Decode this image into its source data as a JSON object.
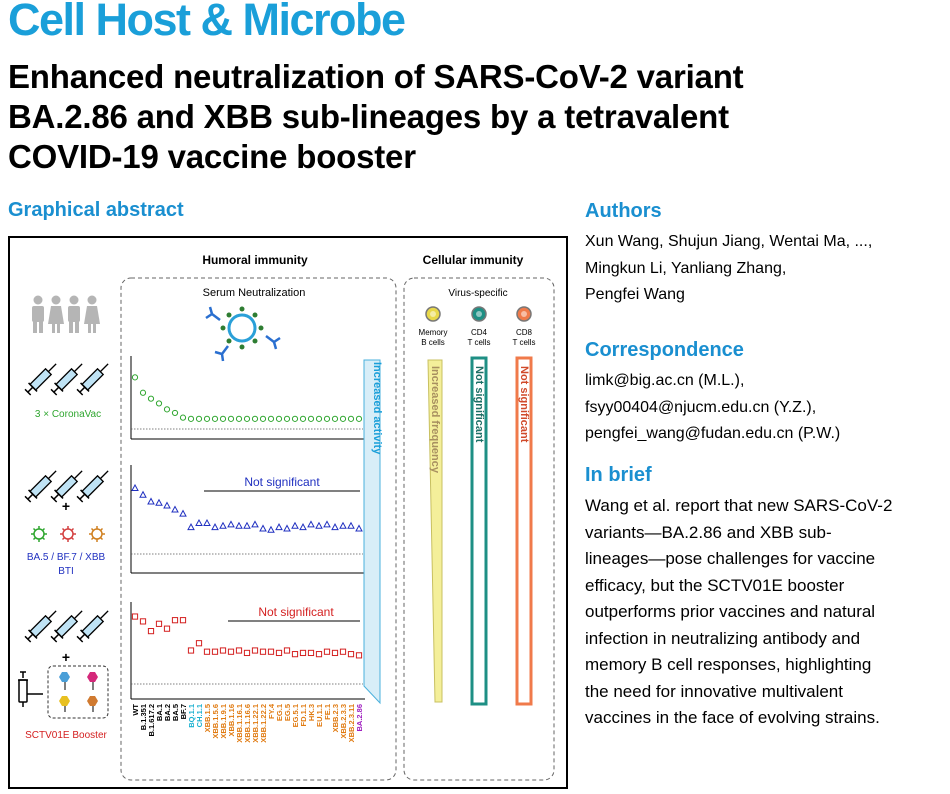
{
  "journal": "Cell Host & Microbe",
  "title_lines": [
    "Enhanced neutralization of SARS-CoV-2 variant",
    "BA.2.86 and XBB sub-lineages by a tetravalent",
    "COVID-19 vaccine booster"
  ],
  "graphical_abstract": {
    "heading": "Graphical abstract",
    "humoral_title": "Humoral immunity",
    "cellular_title": "Cellular immunity",
    "serum_label": "Serum Neutralization",
    "virus_specific_label": "Virus-specific",
    "cell_types": [
      {
        "line1": "Memory",
        "line2": "B cells",
        "color": "#e8d84a"
      },
      {
        "line1": "CD4",
        "line2": "T cells",
        "color": "#1e8f84"
      },
      {
        "line1": "CD8",
        "line2": "T cells",
        "color": "#f07a4a"
      }
    ],
    "groups": [
      {
        "label": "3 × CoronaVac",
        "label2": "",
        "color": "#2fa62f"
      },
      {
        "label": "BA.5 / BF.7 / XBB",
        "label2": "BTI",
        "color": "#2030c0"
      },
      {
        "label": "SCTV01E Booster",
        "label2": "",
        "color": "#d42020"
      }
    ],
    "plus_sign": "+",
    "not_significant": "Not significant",
    "increased_activity": "Increased activity",
    "increased_frequency": "Increased frequency",
    "cell_not_significant": "Not significant",
    "colors": {
      "accent": "#1a9fd9",
      "green": "#2fa62f",
      "blue": "#2030c0",
      "red": "#d42020",
      "orange": "#e07a10",
      "teal": "#1e8f84",
      "purple": "#a020c0"
    },
    "variants": [
      {
        "name": "WT",
        "color": "#000000"
      },
      {
        "name": "B.1.351",
        "color": "#000000"
      },
      {
        "name": "B.1.617.2",
        "color": "#000000"
      },
      {
        "name": "BA.1",
        "color": "#000000"
      },
      {
        "name": "BA.2",
        "color": "#000000"
      },
      {
        "name": "BA.5",
        "color": "#000000"
      },
      {
        "name": "BF.7",
        "color": "#000000"
      },
      {
        "name": "BQ.1.1",
        "color": "#1ab0d0"
      },
      {
        "name": "CH.1.1",
        "color": "#1ab0d0"
      },
      {
        "name": "XBB.1.5",
        "color": "#e07a10"
      },
      {
        "name": "XBB.1.5.6",
        "color": "#e07a10"
      },
      {
        "name": "XBB.1.9.1",
        "color": "#e07a10"
      },
      {
        "name": "XBB.1.16",
        "color": "#e07a10"
      },
      {
        "name": "XBB.1.16.1",
        "color": "#e07a10"
      },
      {
        "name": "XBB.1.16.6",
        "color": "#e07a10"
      },
      {
        "name": "XBB.1.22.1",
        "color": "#e07a10"
      },
      {
        "name": "XBB.1.22.2",
        "color": "#e07a10"
      },
      {
        "name": "FY.4",
        "color": "#e07a10"
      },
      {
        "name": "EG.1",
        "color": "#e07a10"
      },
      {
        "name": "EG.5",
        "color": "#e07a10"
      },
      {
        "name": "EG.5.1",
        "color": "#e07a10"
      },
      {
        "name": "FD.1.1",
        "color": "#e07a10"
      },
      {
        "name": "HK.3",
        "color": "#e07a10"
      },
      {
        "name": "EU.1.1",
        "color": "#e07a10"
      },
      {
        "name": "FE.1",
        "color": "#e07a10"
      },
      {
        "name": "XBB.2.3",
        "color": "#e07a10"
      },
      {
        "name": "XBB.2.3.3",
        "color": "#e07a10"
      },
      {
        "name": "XBB.2.3.11",
        "color": "#e07a10"
      },
      {
        "name": "BA.2.86",
        "color": "#a020c0"
      }
    ],
    "series": [
      {
        "name": "3 × CoronaVac",
        "marker": "circle",
        "color": "#2fa62f",
        "values": [
          7.2,
          5.9,
          5.4,
          5.0,
          4.5,
          4.2,
          3.8,
          3.7,
          3.7,
          3.7,
          3.7,
          3.7,
          3.7,
          3.7,
          3.7,
          3.7,
          3.7,
          3.7,
          3.7,
          3.7,
          3.7,
          3.7,
          3.7,
          3.7,
          3.7,
          3.7,
          3.7,
          3.7,
          3.7
        ]
      },
      {
        "name": "BA.5 / BF.7 / XBB BTI",
        "marker": "triangle",
        "color": "#2030c0",
        "values": [
          9.3,
          8.8,
          8.3,
          8.2,
          8.0,
          7.7,
          7.4,
          6.4,
          6.7,
          6.7,
          6.4,
          6.5,
          6.6,
          6.5,
          6.5,
          6.6,
          6.3,
          6.2,
          6.4,
          6.3,
          6.5,
          6.4,
          6.6,
          6.5,
          6.6,
          6.4,
          6.5,
          6.5,
          6.3
        ]
      },
      {
        "name": "SCTV01E Booster",
        "marker": "square",
        "color": "#d42020",
        "values": [
          10.8,
          10.4,
          9.6,
          10.2,
          9.8,
          10.5,
          10.5,
          8.0,
          8.6,
          7.9,
          7.9,
          8.0,
          7.9,
          8.0,
          7.8,
          8.0,
          7.9,
          7.9,
          7.8,
          8.0,
          7.7,
          7.8,
          7.8,
          7.7,
          7.9,
          7.8,
          7.9,
          7.7,
          7.6
        ]
      }
    ]
  },
  "authors": {
    "heading": "Authors",
    "lines": [
      "Xun Wang, Shujun Jiang, Wentai Ma, ...,",
      "Mingkun Li, Yanliang Zhang,",
      "Pengfei Wang"
    ]
  },
  "correspondence": {
    "heading": "Correspondence",
    "lines": [
      "limk@big.ac.cn (M.L.),",
      "fsyy00404@njucm.edu.cn (Y.Z.),",
      "pengfei_wang@fudan.edu.cn (P.W.)"
    ]
  },
  "in_brief": {
    "heading": "In brief",
    "lines": [
      "Wang et al. report that new SARS-CoV-2",
      "variants—BA.2.86 and XBB sub-",
      "lineages—pose challenges for vaccine",
      "efficacy, but the SCTV01E booster",
      "outperforms prior vaccines and natural",
      "infection in neutralizing antibody and",
      "memory B cell responses, highlighting",
      "the need for innovative multivalent",
      "vaccines in the face of evolving strains."
    ]
  }
}
